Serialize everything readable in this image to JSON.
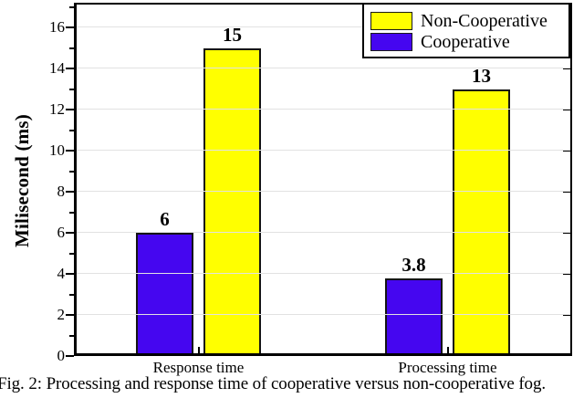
{
  "figure": {
    "caption": "Fig. 2: Processing and response time of cooperative versus non-cooperative fog."
  },
  "chart_data": {
    "type": "bar",
    "title": "",
    "categories": [
      "Response time",
      "Processing time"
    ],
    "series": [
      {
        "name": "Cooperative",
        "color": "#4506F0",
        "values": [
          6,
          3.8
        ],
        "value_labels": [
          "6",
          "3.8"
        ]
      },
      {
        "name": "Non-Cooperative",
        "color": "#FFFF00",
        "values": [
          15,
          13
        ],
        "value_labels": [
          "15",
          "13"
        ]
      }
    ],
    "xlabel": "",
    "ylabel": "Milisecond (ms)",
    "ylim": [
      0,
      17.2
    ],
    "yticks": [
      0,
      2,
      4,
      6,
      8,
      10,
      12,
      14,
      16
    ],
    "minor_ytick_step": 1,
    "grid": "horizontal-major",
    "legend": {
      "position": "top-right",
      "entries": [
        {
          "label": "Non-Cooperative",
          "color": "#FFFF00"
        },
        {
          "label": "Cooperative",
          "color": "#4506F0"
        }
      ]
    }
  }
}
